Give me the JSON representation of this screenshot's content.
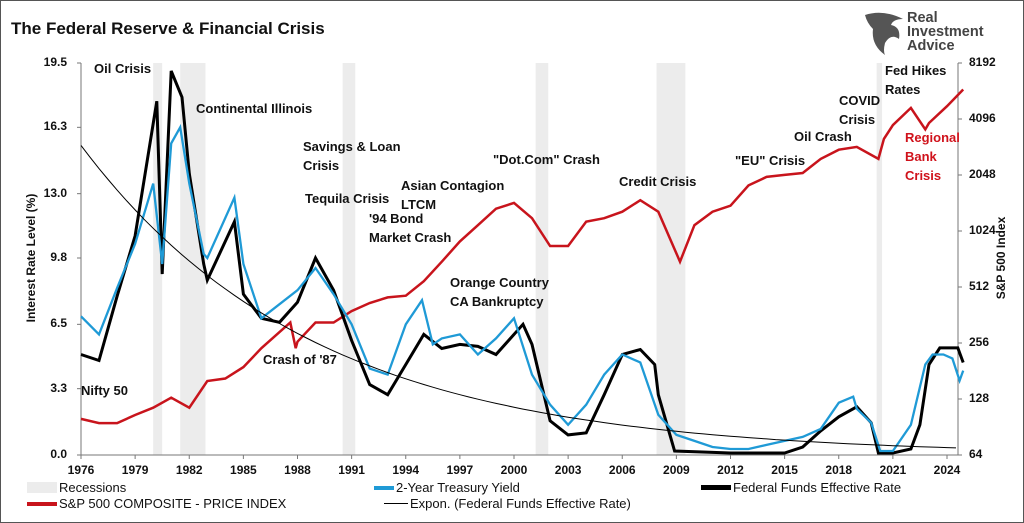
{
  "title": "The Federal Reserve & Financial Crisis",
  "logo": {
    "lines": [
      "Real",
      "Investment",
      "Advice"
    ]
  },
  "chart_data": {
    "type": "line",
    "title": "The Federal Reserve & Financial Crisis",
    "xlabel": "",
    "ylabel": "Interest Rate Level (%)",
    "y2label": "S&P 500 Index",
    "xlim": [
      1976,
      2024.9
    ],
    "ylim": [
      0,
      19.5
    ],
    "y2lim": [
      64,
      8192
    ],
    "y2scale": "log2",
    "grid": false,
    "legend_position": "bottom",
    "x_ticks": [
      "1976",
      "1979",
      "1982",
      "1985",
      "1988",
      "1991",
      "1994",
      "1997",
      "2000",
      "2003",
      "2006",
      "2009",
      "2012",
      "2015",
      "2018",
      "2021",
      "2024"
    ],
    "y_ticks": [
      "0.0",
      "3.3",
      "6.5",
      "9.8",
      "13.0",
      "16.3",
      "19.5"
    ],
    "y2_ticks": [
      "64",
      "128",
      "256",
      "512",
      "1024",
      "2048",
      "4096",
      "8192"
    ],
    "recessions": [
      [
        1980.0,
        1980.5
      ],
      [
        1981.5,
        1982.9
      ],
      [
        1990.5,
        1991.2
      ],
      [
        2001.2,
        2001.9
      ],
      [
        2007.9,
        2009.5
      ],
      [
        2020.1,
        2020.4
      ]
    ],
    "series": [
      {
        "name": "2-Year Treasury Yield",
        "color": "#1f9ad6",
        "axis": "left",
        "points": [
          [
            1976,
            6.9
          ],
          [
            1977,
            6.0
          ],
          [
            1978,
            8.3
          ],
          [
            1979,
            10.5
          ],
          [
            1980,
            13.5
          ],
          [
            1980.5,
            9.5
          ],
          [
            1981,
            15.5
          ],
          [
            1981.5,
            16.3
          ],
          [
            1982,
            13.5
          ],
          [
            1982.8,
            10
          ],
          [
            1983,
            9.8
          ],
          [
            1984.5,
            12.8
          ],
          [
            1985,
            9.5
          ],
          [
            1986,
            6.8
          ],
          [
            1987,
            7.5
          ],
          [
            1988,
            8.2
          ],
          [
            1989,
            9.3
          ],
          [
            1990,
            8.0
          ],
          [
            1991,
            6.5
          ],
          [
            1992,
            4.3
          ],
          [
            1993,
            4.0
          ],
          [
            1994,
            6.5
          ],
          [
            1994.9,
            7.7
          ],
          [
            1995.5,
            5.5
          ],
          [
            1996,
            5.8
          ],
          [
            1997,
            6.0
          ],
          [
            1998,
            5.0
          ],
          [
            1999,
            5.8
          ],
          [
            2000,
            6.8
          ],
          [
            2001,
            4.0
          ],
          [
            2002,
            2.5
          ],
          [
            2003,
            1.5
          ],
          [
            2004,
            2.5
          ],
          [
            2005,
            4.0
          ],
          [
            2006,
            5.0
          ],
          [
            2007,
            4.6
          ],
          [
            2008,
            2.0
          ],
          [
            2009,
            1.0
          ],
          [
            2010,
            0.7
          ],
          [
            2011,
            0.4
          ],
          [
            2012,
            0.3
          ],
          [
            2013,
            0.3
          ],
          [
            2014,
            0.5
          ],
          [
            2015,
            0.7
          ],
          [
            2016,
            0.9
          ],
          [
            2017,
            1.3
          ],
          [
            2018,
            2.6
          ],
          [
            2018.8,
            2.9
          ],
          [
            2019,
            2.3
          ],
          [
            2019.8,
            1.6
          ],
          [
            2020.3,
            0.2
          ],
          [
            2021,
            0.2
          ],
          [
            2022,
            1.5
          ],
          [
            2022.8,
            4.5
          ],
          [
            2023.2,
            5.0
          ],
          [
            2023.8,
            5.0
          ],
          [
            2024.3,
            4.8
          ],
          [
            2024.7,
            3.7
          ],
          [
            2024.9,
            4.2
          ]
        ]
      },
      {
        "name": "Federal Funds Effective Rate",
        "color": "#000000",
        "axis": "left",
        "points": [
          [
            1976,
            5.0
          ],
          [
            1977,
            4.7
          ],
          [
            1978,
            7.9
          ],
          [
            1979,
            10.9
          ],
          [
            1980.2,
            17.6
          ],
          [
            1980.5,
            9.0
          ],
          [
            1981,
            19.1
          ],
          [
            1981.6,
            17.8
          ],
          [
            1982,
            14
          ],
          [
            1982.8,
            9.5
          ],
          [
            1983,
            8.7
          ],
          [
            1984.5,
            11.6
          ],
          [
            1985,
            8
          ],
          [
            1986,
            6.8
          ],
          [
            1987,
            6.6
          ],
          [
            1988,
            7.6
          ],
          [
            1989,
            9.8
          ],
          [
            1990,
            8.2
          ],
          [
            1991,
            5.7
          ],
          [
            1992,
            3.5
          ],
          [
            1993,
            3.0
          ],
          [
            1994,
            4.5
          ],
          [
            1995,
            6.0
          ],
          [
            1996,
            5.3
          ],
          [
            1997,
            5.5
          ],
          [
            1998,
            5.4
          ],
          [
            1999,
            5.0
          ],
          [
            2000.5,
            6.5
          ],
          [
            2001,
            5.5
          ],
          [
            2002,
            1.7
          ],
          [
            2003,
            1.0
          ],
          [
            2004,
            1.1
          ],
          [
            2005,
            3.0
          ],
          [
            2006,
            5.0
          ],
          [
            2007,
            5.25
          ],
          [
            2007.8,
            4.5
          ],
          [
            2008,
            3
          ],
          [
            2008.9,
            0.2
          ],
          [
            2012,
            0.1
          ],
          [
            2015,
            0.1
          ],
          [
            2016,
            0.4
          ],
          [
            2017,
            1.2
          ],
          [
            2018,
            1.9
          ],
          [
            2019,
            2.4
          ],
          [
            2019.8,
            1.6
          ],
          [
            2020.2,
            0.1
          ],
          [
            2021,
            0.1
          ],
          [
            2022,
            0.3
          ],
          [
            2022.5,
            1.5
          ],
          [
            2023,
            4.5
          ],
          [
            2023.6,
            5.33
          ],
          [
            2024.6,
            5.33
          ],
          [
            2024.9,
            4.6
          ]
        ]
      },
      {
        "name": "S&P 500 COMPOSITE - PRICE INDEX",
        "color": "#c8141c",
        "axis": "right",
        "points": [
          [
            1976,
            100
          ],
          [
            1977,
            95
          ],
          [
            1978,
            95
          ],
          [
            1979,
            105
          ],
          [
            1980,
            115
          ],
          [
            1981,
            130
          ],
          [
            1982,
            115
          ],
          [
            1983,
            160
          ],
          [
            1984,
            165
          ],
          [
            1985,
            190
          ],
          [
            1986,
            240
          ],
          [
            1987.6,
            330
          ],
          [
            1987.9,
            240
          ],
          [
            1988,
            260
          ],
          [
            1989,
            330
          ],
          [
            1990,
            330
          ],
          [
            1991,
            380
          ],
          [
            1992,
            420
          ],
          [
            1993,
            450
          ],
          [
            1994,
            460
          ],
          [
            1995,
            550
          ],
          [
            1996,
            700
          ],
          [
            1997,
            900
          ],
          [
            1998,
            1100
          ],
          [
            1999,
            1350
          ],
          [
            2000,
            1450
          ],
          [
            2001,
            1200
          ],
          [
            2002,
            850
          ],
          [
            2003,
            850
          ],
          [
            2004,
            1150
          ],
          [
            2005,
            1200
          ],
          [
            2006,
            1300
          ],
          [
            2007,
            1500
          ],
          [
            2008,
            1300
          ],
          [
            2009.2,
            700
          ],
          [
            2010,
            1100
          ],
          [
            2011,
            1300
          ],
          [
            2012,
            1400
          ],
          [
            2013,
            1800
          ],
          [
            2014,
            2000
          ],
          [
            2015,
            2050
          ],
          [
            2016,
            2100
          ],
          [
            2017,
            2500
          ],
          [
            2018,
            2800
          ],
          [
            2019,
            2900
          ],
          [
            2020.2,
            2500
          ],
          [
            2020.5,
            3200
          ],
          [
            2021,
            3800
          ],
          [
            2022,
            4700
          ],
          [
            2022.8,
            3600
          ],
          [
            2023,
            3900
          ],
          [
            2024,
            4800
          ],
          [
            2024.9,
            5900
          ]
        ]
      },
      {
        "name": "Expon. (Federal Funds Effective Rate)",
        "color": "#000000",
        "axis": "left",
        "type": "exponential-trend",
        "points": [
          [
            1976,
            15.4
          ],
          [
            2024.6,
            0.35
          ]
        ]
      }
    ],
    "annotations": [
      "Oil Crisis",
      "Continental Illinois",
      "Savings & Loan\nCrisis",
      "Tequila Crisis",
      "'94 Bond\nMarket Crash",
      "Asian Contagion\nLTCM",
      "\"Dot.Com\" Crash",
      "Orange Country\nCA Bankruptcy",
      "Credit Crisis",
      "\"EU\" Crisis",
      "Oil Crash",
      "COVID\nCrisis",
      "Fed Hikes\nRates",
      "Regional\nBank\nCrisis",
      "Crash of '87",
      "Nifty 50"
    ],
    "legend": [
      "Recessions",
      "2-Year Treasury Yield",
      "Federal Funds Effective Rate",
      "S&P 500 COMPOSITE - PRICE INDEX",
      "Expon. (Federal Funds Effective Rate)"
    ]
  }
}
